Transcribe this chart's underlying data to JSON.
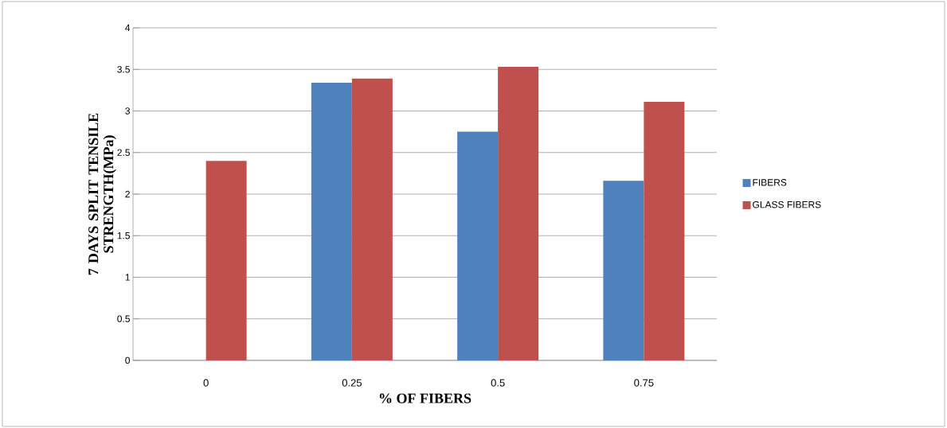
{
  "chart_data": {
    "type": "bar",
    "xlabel": "%  OF  FIBERS",
    "ylabel": "7 DAYS SPLIT TENSILE STRENGTH(MPa)",
    "categories": [
      "0",
      "0.25",
      "0.5",
      "0.75"
    ],
    "series": [
      {
        "name": "FIBERS",
        "color": "#4f81bd",
        "values": [
          null,
          3.34,
          2.75,
          2.16
        ]
      },
      {
        "name": "GLASS FIBERS",
        "color": "#c0504d",
        "values": [
          2.4,
          3.39,
          3.53,
          3.11
        ]
      }
    ],
    "ylim": [
      0,
      4
    ],
    "yticks": [
      0,
      0.5,
      1,
      1.5,
      2,
      2.5,
      3,
      3.5,
      4
    ],
    "grid": "y",
    "legend": "right"
  }
}
